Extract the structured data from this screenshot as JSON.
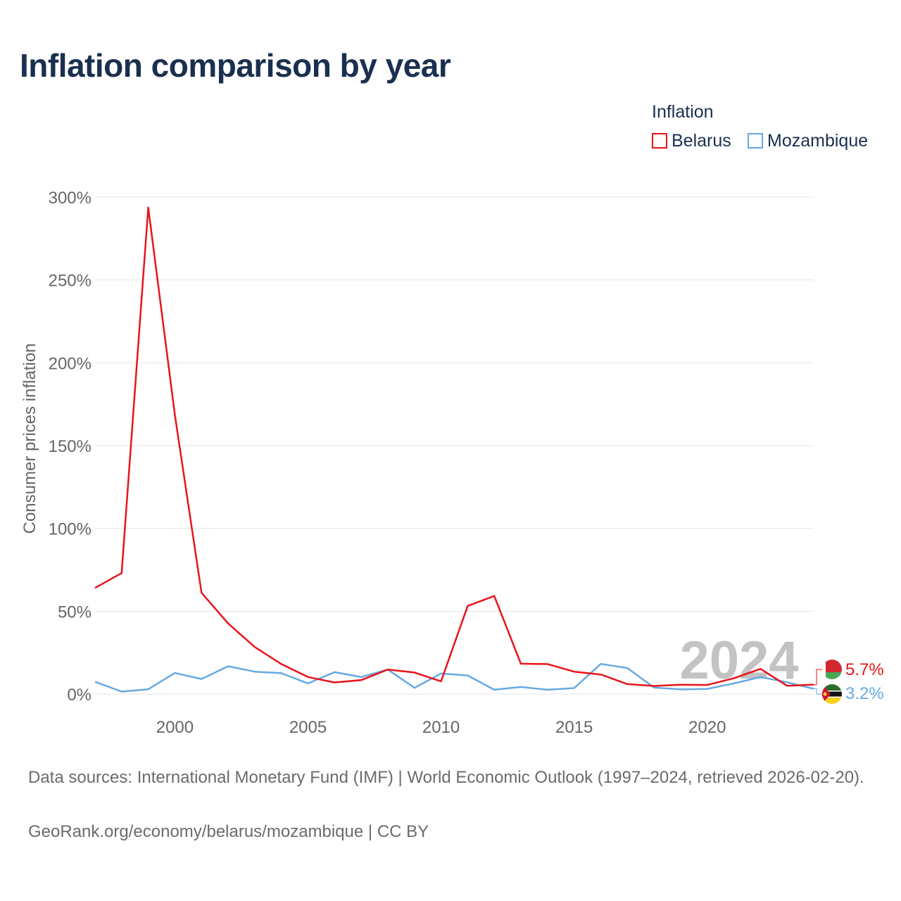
{
  "title": "Inflation comparison by year",
  "legend": {
    "title": "Inflation",
    "items": [
      {
        "label": "Belarus",
        "color": "#e8141b"
      },
      {
        "label": "Mozambique",
        "color": "#66a9e2"
      }
    ]
  },
  "chart_data": {
    "type": "line",
    "ylabel": "Consumer prices inflation",
    "xlabel": "",
    "ylim": [
      0,
      300
    ],
    "xlim": [
      1997,
      2024
    ],
    "y_ticks": [
      0,
      50,
      100,
      150,
      200,
      250,
      300
    ],
    "y_tick_labels": [
      "0%",
      "50%",
      "100%",
      "150%",
      "200%",
      "250%",
      "300%"
    ],
    "x_ticks": [
      2000,
      2005,
      2010,
      2015,
      2020
    ],
    "x_tick_labels": [
      "2000",
      "2005",
      "2010",
      "2015",
      "2020"
    ],
    "watermark_year": "2024",
    "x": [
      1997,
      1998,
      1999,
      2000,
      2001,
      2002,
      2003,
      2004,
      2005,
      2006,
      2007,
      2008,
      2009,
      2010,
      2011,
      2012,
      2013,
      2014,
      2015,
      2016,
      2017,
      2018,
      2019,
      2020,
      2021,
      2022,
      2023,
      2024
    ],
    "series": [
      {
        "name": "Belarus",
        "color": "#e8141b",
        "end_label": "5.7%",
        "values": [
          64.1,
          73.0,
          293.7,
          168.6,
          61.1,
          42.6,
          28.4,
          18.1,
          10.3,
          7.0,
          8.4,
          14.8,
          13.0,
          7.7,
          53.2,
          59.2,
          18.3,
          18.1,
          13.5,
          11.8,
          6.0,
          4.9,
          5.6,
          5.5,
          9.5,
          15.2,
          5.0,
          5.7
        ]
      },
      {
        "name": "Mozambique",
        "color": "#66a9e2",
        "end_label": "3.2%",
        "values": [
          7.4,
          1.5,
          2.9,
          12.7,
          9.1,
          16.8,
          13.5,
          12.6,
          6.4,
          13.2,
          10.3,
          14.8,
          3.8,
          12.4,
          11.2,
          2.6,
          4.3,
          2.6,
          3.6,
          18.2,
          15.7,
          3.9,
          2.8,
          3.1,
          6.4,
          10.3,
          7.1,
          3.2
        ]
      }
    ]
  },
  "footer": {
    "sources": "Data sources: International Monetary Fund (IMF) | World Economic Outlook (1997–2024, retrieved 2026-02-20).",
    "credit": "GeoRank.org/economy/belarus/mozambique | CC BY"
  }
}
